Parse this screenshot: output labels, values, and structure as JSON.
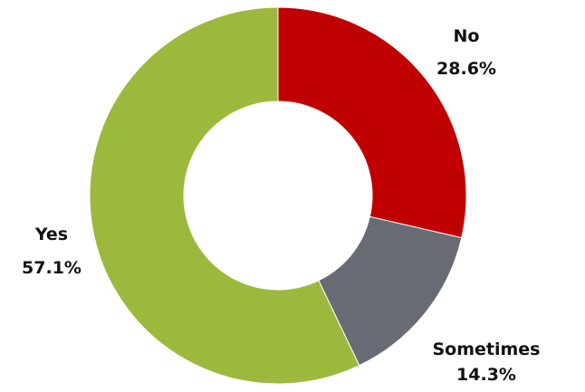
{
  "chart_data": {
    "type": "pie",
    "variant": "donut",
    "categories": [
      "No",
      "Sometimes",
      "Yes"
    ],
    "values": [
      28.6,
      14.3,
      57.1
    ],
    "value_labels": [
      "28.6%",
      "14.3%",
      "57.1%"
    ],
    "colors": [
      "#c00000",
      "#686b73",
      "#9cb93d"
    ],
    "title": "",
    "legend": "none"
  }
}
